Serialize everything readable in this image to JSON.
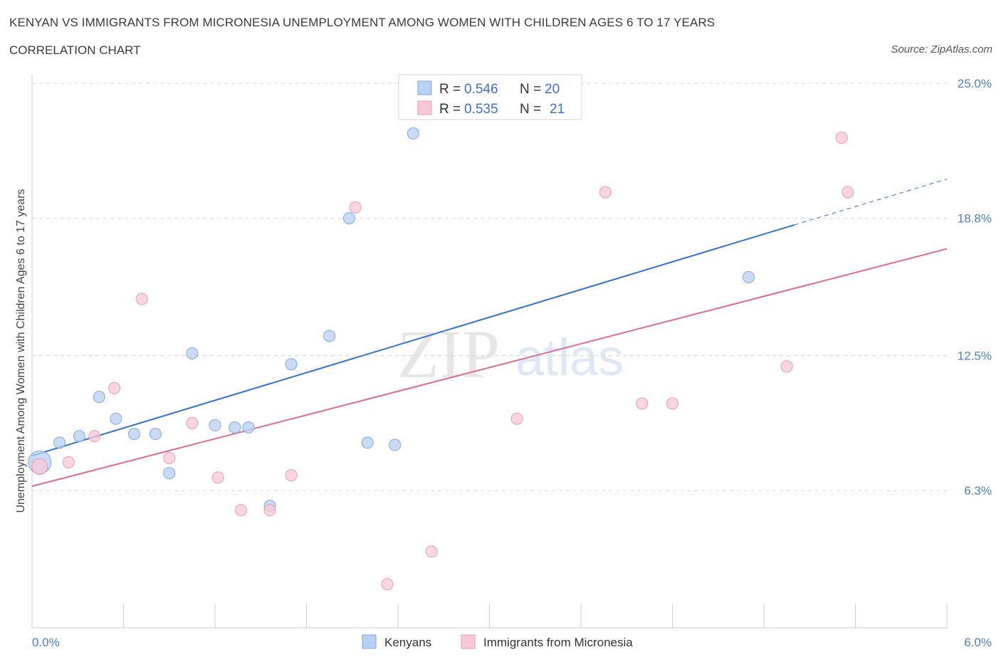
{
  "title": "KENYAN VS IMMIGRANTS FROM MICRONESIA UNEMPLOYMENT AMONG WOMEN WITH CHILDREN AGES 6 TO 17 YEARS",
  "subtitle": "CORRELATION CHART",
  "source": "Source: ZipAtlas.com",
  "watermark": {
    "zip": "ZIP",
    "atlas": "atlas"
  },
  "colors": {
    "blue_fill": "#b8d0f2",
    "blue_stroke": "#7fa6e0",
    "blue_line": "#2f72d0",
    "pink_fill": "#f8c8d6",
    "pink_stroke": "#e99ab2",
    "pink_line": "#e06a92",
    "grid": "#d8d8d8",
    "tick_text": "#4a7fd0"
  },
  "legend_top": {
    "rows": [
      {
        "r_label": "R = ",
        "r_value": "0.546",
        "n_label": "N = ",
        "n_value": "20"
      },
      {
        "r_label": "R = ",
        "r_value": "0.535",
        "n_label": "N = ",
        "n_value": "21"
      }
    ]
  },
  "chart_data": {
    "type": "scatter",
    "xlabel": "",
    "ylabel": "Unemployment Among Women with Children Ages 6 to 17 years",
    "xlim": [
      0,
      6.0
    ],
    "ylim": [
      0,
      25.0
    ],
    "x_tick_labels": [
      "0.0%",
      "6.0%"
    ],
    "y_ticks": [
      6.3,
      12.5,
      18.8,
      25.0
    ],
    "y_tick_labels": [
      "6.3%",
      "12.5%",
      "18.8%",
      "25.0%"
    ],
    "grid": true,
    "legend_position": "bottom-center",
    "series": [
      {
        "name": "Kenyans",
        "color": "blue",
        "points": [
          [
            0.05,
            7.6
          ],
          [
            0.18,
            8.5
          ],
          [
            0.31,
            8.8
          ],
          [
            0.44,
            10.6
          ],
          [
            0.55,
            9.6
          ],
          [
            0.67,
            8.9
          ],
          [
            0.81,
            8.9
          ],
          [
            0.9,
            7.1
          ],
          [
            1.05,
            12.6
          ],
          [
            1.2,
            9.3
          ],
          [
            1.33,
            9.2
          ],
          [
            1.42,
            9.2
          ],
          [
            1.56,
            5.6
          ],
          [
            1.7,
            12.1
          ],
          [
            1.95,
            13.4
          ],
          [
            2.08,
            18.8
          ],
          [
            2.2,
            8.5
          ],
          [
            2.38,
            8.4
          ],
          [
            2.5,
            22.7
          ],
          [
            4.7,
            16.1
          ]
        ],
        "trend": {
          "x": [
            0.0,
            5.0
          ],
          "y": [
            7.9,
            18.5
          ],
          "dashed_extension": {
            "x": [
              5.0,
              6.0
            ],
            "y": [
              18.5,
              20.6
            ]
          }
        }
      },
      {
        "name": "Immigrants from Micronesia",
        "color": "pink",
        "points": [
          [
            0.05,
            7.4
          ],
          [
            0.24,
            7.6
          ],
          [
            0.41,
            8.8
          ],
          [
            0.54,
            11.0
          ],
          [
            0.72,
            15.1
          ],
          [
            0.9,
            7.8
          ],
          [
            1.05,
            9.4
          ],
          [
            1.22,
            6.9
          ],
          [
            1.37,
            5.4
          ],
          [
            1.56,
            5.4
          ],
          [
            1.7,
            7.0
          ],
          [
            2.12,
            19.3
          ],
          [
            2.33,
            2.0
          ],
          [
            2.62,
            3.5
          ],
          [
            3.18,
            9.6
          ],
          [
            3.76,
            20.0
          ],
          [
            4.0,
            10.3
          ],
          [
            4.2,
            10.3
          ],
          [
            4.95,
            12.0
          ],
          [
            5.31,
            22.5
          ],
          [
            5.35,
            20.0
          ]
        ],
        "trend": {
          "x": [
            0.0,
            6.0
          ],
          "y": [
            6.5,
            17.4
          ]
        }
      }
    ]
  }
}
